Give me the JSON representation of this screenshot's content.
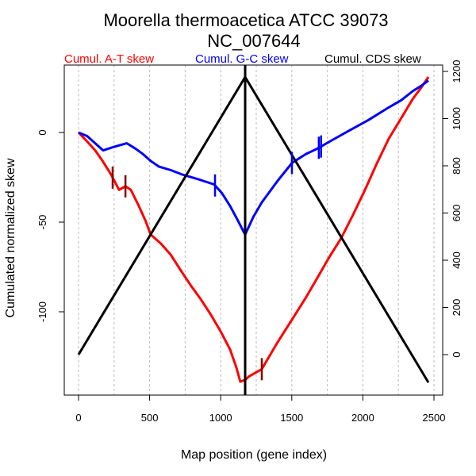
{
  "chart_data": {
    "type": "line",
    "title": [
      "Moorella thermoacetica ATCC 39073",
      "NC_007644"
    ],
    "xlabel": "Map position (gene index)",
    "ylabel": "Cumulated normalized skew",
    "xlim": [
      -100,
      2570
    ],
    "ylim": [
      -148,
      38
    ],
    "y2lim": [
      -130,
      1230
    ],
    "x_ticks": [
      0,
      500,
      1000,
      1500,
      2000,
      2500
    ],
    "x_tick_labels": [
      "0",
      "500",
      "1000",
      "1500",
      "2000",
      "2500"
    ],
    "y_ticks": [
      0,
      -50,
      -100
    ],
    "y_tick_labels": [
      "0",
      "-50",
      "-100"
    ],
    "y2_ticks": [
      0,
      200,
      400,
      600,
      800,
      1000,
      1200
    ],
    "y2_tick_labels": [
      "0",
      "200",
      "400",
      "600",
      "800",
      "1000",
      "1200"
    ],
    "grid_x": [
      0,
      250,
      500,
      750,
      1000,
      1250,
      1500,
      1750,
      2000,
      2250,
      2500
    ],
    "grid": "vertical dotted",
    "legend_position": "top",
    "split_position": 1172,
    "series": [
      {
        "name": "Cumul. A-T skew",
        "axis": "left",
        "color": "#ff0000",
        "x": [
          0,
          60,
          117,
          170,
          229,
          285,
          330,
          368,
          424,
          470,
          508,
          580,
          647,
          720,
          787,
          860,
          926,
          1000,
          1066,
          1110,
          1138,
          1172,
          1200,
          1289,
          1400,
          1512,
          1600,
          1680,
          1760,
          1847,
          1930,
          2015,
          2100,
          2182,
          2270,
          2350,
          2410,
          2461
        ],
        "y": [
          0,
          -5,
          -10,
          -16,
          -23.5,
          -32,
          -30,
          -32,
          -41,
          -49,
          -57,
          -62,
          -68,
          -77,
          -85,
          -93,
          -101,
          -111,
          -121,
          -131,
          -139,
          -138,
          -136,
          -132,
          -117,
          -103,
          -92,
          -81,
          -70,
          -59,
          -46,
          -32,
          -17,
          -3.5,
          8,
          18.6,
          25,
          31
        ]
      },
      {
        "name": "Cumul. G-C skew",
        "axis": "left",
        "color": "#0000ff",
        "x": [
          0,
          60,
          117,
          173,
          250,
          340,
          400,
          452,
          510,
          564,
          650,
          731,
          840,
          954,
          1010,
          1066,
          1120,
          1172,
          1230,
          1289,
          1400,
          1501,
          1600,
          1680,
          1790,
          1903,
          2040,
          2182,
          2270,
          2350,
          2410,
          2461
        ],
        "y": [
          0,
          -2,
          -6,
          -10,
          -8,
          -6,
          -9,
          -12,
          -16,
          -19,
          -21,
          -23.5,
          -26,
          -29,
          -34,
          -41,
          -49,
          -57,
          -47,
          -39,
          -27,
          -17,
          -12,
          -9,
          -4,
          1,
          7,
          14,
          18,
          23,
          26,
          29
        ]
      },
      {
        "name": "Cumul. CDS skew",
        "axis": "right",
        "color": "#000000",
        "x": [
          0,
          1172,
          2461
        ],
        "y": [
          0,
          1176,
          -118
        ]
      }
    ],
    "markers": [
      {
        "series": "Cumul. A-T skew",
        "x": 240,
        "color": "#8b0000"
      },
      {
        "series": "Cumul. A-T skew",
        "x": 330,
        "color": "#8b0000"
      },
      {
        "series": "Cumul. A-T skew",
        "x": 1289,
        "color": "#8b0000"
      },
      {
        "series": "Cumul. G-C skew",
        "x": 960,
        "color": "#0000ff"
      },
      {
        "series": "Cumul. G-C skew",
        "x": 1501,
        "color": "#0000ff"
      },
      {
        "series": "Cumul. G-C skew",
        "x": 1690,
        "color": "#0000ff"
      },
      {
        "series": "Cumul. G-C skew",
        "x": 1706,
        "color": "#0000ff"
      }
    ]
  }
}
